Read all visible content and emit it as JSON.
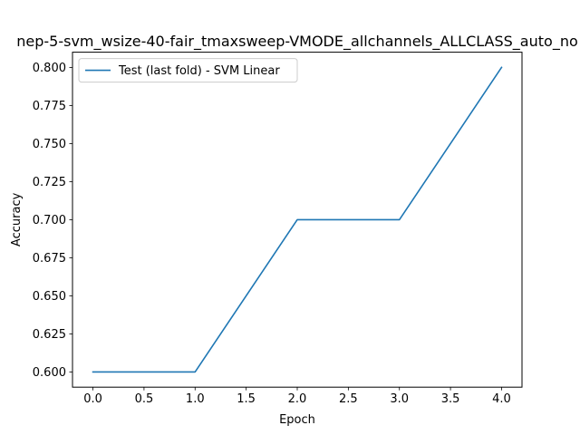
{
  "chart_data": {
    "type": "line",
    "title": "nep-5-svm_wsize-40-fair_tmaxsweep-VMODE_allchannels_ALLCLASS_auto_no",
    "xlabel": "Epoch",
    "ylabel": "Accuracy",
    "xlim": [
      -0.2,
      4.2
    ],
    "ylim": [
      0.59,
      0.81
    ],
    "xticks": [
      0.0,
      0.5,
      1.0,
      1.5,
      2.0,
      2.5,
      3.0,
      3.5,
      4.0
    ],
    "xtick_labels": [
      "0.0",
      "0.5",
      "1.0",
      "1.5",
      "2.0",
      "2.5",
      "3.0",
      "3.5",
      "4.0"
    ],
    "yticks": [
      0.6,
      0.625,
      0.65,
      0.675,
      0.7,
      0.725,
      0.75,
      0.775,
      0.8
    ],
    "ytick_labels": [
      "0.600",
      "0.625",
      "0.650",
      "0.675",
      "0.700",
      "0.725",
      "0.750",
      "0.775",
      "0.800"
    ],
    "grid": false,
    "legend_position": "top-left",
    "series": [
      {
        "name": "Test (last fold) - SVM Linear",
        "color": "#1f77b4",
        "x": [
          0,
          1,
          2,
          3,
          4
        ],
        "y": [
          0.6,
          0.6,
          0.7,
          0.7,
          0.8
        ]
      }
    ]
  }
}
